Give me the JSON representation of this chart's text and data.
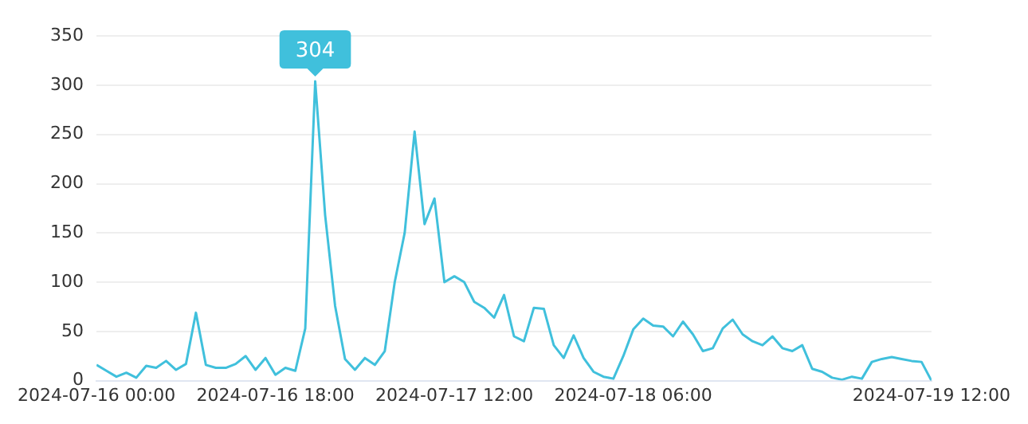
{
  "chart_data": {
    "type": "line",
    "x": [
      "2024-07-16T00:00",
      "2024-07-16T01:00",
      "2024-07-16T02:00",
      "2024-07-16T03:00",
      "2024-07-16T04:00",
      "2024-07-16T05:00",
      "2024-07-16T06:00",
      "2024-07-16T07:00",
      "2024-07-16T08:00",
      "2024-07-16T09:00",
      "2024-07-16T10:00",
      "2024-07-16T11:00",
      "2024-07-16T12:00",
      "2024-07-16T13:00",
      "2024-07-16T14:00",
      "2024-07-16T15:00",
      "2024-07-16T16:00",
      "2024-07-16T17:00",
      "2024-07-16T18:00",
      "2024-07-16T19:00",
      "2024-07-16T20:00",
      "2024-07-16T21:00",
      "2024-07-16T22:00",
      "2024-07-16T23:00",
      "2024-07-17T00:00",
      "2024-07-17T01:00",
      "2024-07-17T02:00",
      "2024-07-17T03:00",
      "2024-07-17T04:00",
      "2024-07-17T05:00",
      "2024-07-17T06:00",
      "2024-07-17T07:00",
      "2024-07-17T08:00",
      "2024-07-17T09:00",
      "2024-07-17T10:00",
      "2024-07-17T11:00",
      "2024-07-17T12:00",
      "2024-07-17T13:00",
      "2024-07-17T14:00",
      "2024-07-17T15:00",
      "2024-07-17T16:00",
      "2024-07-17T17:00",
      "2024-07-17T18:00",
      "2024-07-17T19:00",
      "2024-07-17T20:00",
      "2024-07-17T21:00",
      "2024-07-17T22:00",
      "2024-07-17T23:00",
      "2024-07-18T00:00",
      "2024-07-18T01:00",
      "2024-07-18T02:00",
      "2024-07-18T03:00",
      "2024-07-18T04:00",
      "2024-07-18T05:00",
      "2024-07-18T06:00",
      "2024-07-18T07:00",
      "2024-07-18T08:00",
      "2024-07-18T09:00",
      "2024-07-18T10:00",
      "2024-07-18T11:00",
      "2024-07-18T12:00",
      "2024-07-18T13:00",
      "2024-07-18T14:00",
      "2024-07-18T15:00",
      "2024-07-18T16:00",
      "2024-07-18T17:00",
      "2024-07-18T18:00",
      "2024-07-18T19:00",
      "2024-07-18T20:00",
      "2024-07-18T21:00",
      "2024-07-18T22:00",
      "2024-07-18T23:00",
      "2024-07-19T00:00",
      "2024-07-19T01:00",
      "2024-07-19T02:00",
      "2024-07-19T03:00",
      "2024-07-19T04:00",
      "2024-07-19T05:00",
      "2024-07-19T06:00",
      "2024-07-19T07:00",
      "2024-07-19T08:00",
      "2024-07-19T09:00",
      "2024-07-19T10:00",
      "2024-07-19T11:00",
      "2024-07-19T12:00"
    ],
    "series": [
      {
        "color": "#40c0dc",
        "values": [
          16,
          10,
          4,
          8,
          3,
          15,
          13,
          20,
          11,
          17,
          69,
          16,
          13,
          13,
          17,
          25,
          11,
          23,
          6,
          13,
          10,
          53,
          304,
          168,
          76,
          22,
          11,
          23,
          16,
          30,
          100,
          150,
          253,
          159,
          185,
          100,
          106,
          100,
          80,
          74,
          64,
          87,
          45,
          40,
          74,
          73,
          36,
          23,
          46,
          23,
          9,
          4,
          2,
          25,
          52,
          63,
          56,
          55,
          45,
          60,
          47,
          30,
          33,
          53,
          62,
          47,
          40,
          36,
          45,
          33,
          30,
          36,
          12,
          9,
          3,
          1,
          4,
          2,
          19,
          22,
          24,
          22,
          20,
          19,
          0
        ]
      }
    ],
    "xlim": [
      "2024-07-16T00:00",
      "2024-07-19T12:00"
    ],
    "xticks": [
      {
        "value": "2024-07-16T00:00",
        "label": "2024-07-16 00:00"
      },
      {
        "value": "2024-07-16T18:00",
        "label": "2024-07-16 18:00"
      },
      {
        "value": "2024-07-17T12:00",
        "label": "2024-07-17 12:00"
      },
      {
        "value": "2024-07-18T06:00",
        "label": "2024-07-18 06:00"
      },
      {
        "value": "2024-07-19T12:00",
        "label": "2024-07-19 12:00"
      }
    ],
    "ylim": [
      0,
      350
    ],
    "yticks": [
      0,
      50,
      100,
      150,
      200,
      250,
      300,
      350
    ],
    "grid": "y",
    "legend": false,
    "annotations": [
      {
        "text": "304",
        "x": "2024-07-16T22:00",
        "y": 304
      }
    ]
  }
}
